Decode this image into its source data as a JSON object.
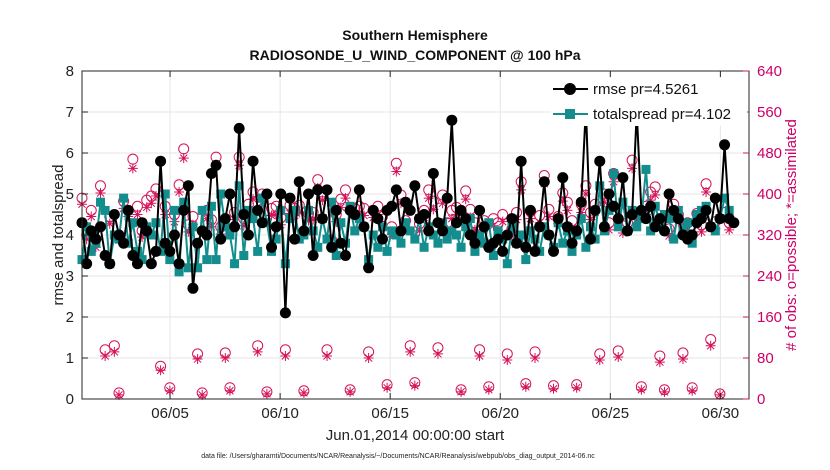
{
  "chart_data": {
    "type": "line",
    "title": "Southern Hemisphere",
    "subtitle": "RADIOSONDE_U_WIND_COMPONENT @ 100 hPa",
    "xlabel": "Jun.01,2014 00:00:00 start",
    "ylabel": "rmse and totalspread",
    "ylabel_right": "# of obs: o=possible; *=assimilated",
    "footnote": "data file: /Users/gharamti/Documents/NCAR/Reanalysis/~/Documents/NCAR/Reanalysis/webpub/obs_diag_output_2014-06.nc",
    "xlim": [
      1.0,
      31.3
    ],
    "ylim": [
      0,
      8
    ],
    "ylim_right": [
      0,
      640
    ],
    "x_ticks": [
      5,
      10,
      15,
      20,
      25,
      30
    ],
    "x_tick_labels": [
      "06/05",
      "06/10",
      "06/15",
      "06/20",
      "06/25",
      "06/30"
    ],
    "y_ticks": [
      0,
      1,
      2,
      3,
      4,
      5,
      6,
      7,
      8
    ],
    "y_tick_labels": [
      "0",
      "1",
      "2",
      "3",
      "4",
      "5",
      "6",
      "7",
      "8"
    ],
    "y_ticks_right": [
      0,
      80,
      160,
      240,
      320,
      400,
      480,
      560,
      640
    ],
    "y_tick_labels_right": [
      "0",
      "80",
      "160",
      "240",
      "320",
      "400",
      "480",
      "560",
      "640"
    ],
    "grid": true,
    "legend_position": "top-right",
    "colors": {
      "rmse": "#000000",
      "spread": "#138d8d",
      "obs": "#d4145a",
      "grid": "#e6e6e6",
      "axis": "#262626"
    },
    "series": [
      {
        "name": "rmse pr=4.5261",
        "marker": "circle",
        "values": [
          4.3,
          3.3,
          4.1,
          3.9,
          4.2,
          3.5,
          3.3,
          4.5,
          4.0,
          3.8,
          4.6,
          3.5,
          3.3,
          4.3,
          4.1,
          3.3,
          3.6,
          5.8,
          3.8,
          3.6,
          4.0,
          3.3,
          4.6,
          5.2,
          2.7,
          3.8,
          4.1,
          4.0,
          5.5,
          5.7,
          3.9,
          4.4,
          5.0,
          4.2,
          6.6,
          4.5,
          4.0,
          5.8,
          4.6,
          4.3,
          5.0,
          3.7,
          4.2,
          5.0,
          2.1,
          4.9,
          3.9,
          5.3,
          4.1,
          5.0,
          3.5,
          5.1,
          4.4,
          5.1,
          3.7,
          4.6,
          3.8,
          3.5,
          4.6,
          4.5,
          5.1,
          4.2,
          3.2,
          4.6,
          4.4,
          3.9,
          4.6,
          4.7,
          5.1,
          4.1,
          4.8,
          4.6,
          5.2,
          4.4,
          4.5,
          4.1,
          5.5,
          4.3,
          4.1,
          4.9,
          6.8,
          4.3,
          4.6,
          4.4,
          4.0,
          3.8,
          4.6,
          4.2,
          3.7,
          3.8,
          3.9,
          3.6,
          4.0,
          4.4,
          3.8,
          5.8,
          3.7,
          4.6,
          3.6,
          4.2,
          5.3,
          4.0,
          3.6,
          4.4,
          5.4,
          4.2,
          3.8,
          4.1,
          4.8,
          7.1,
          3.9,
          4.6,
          5.8,
          4.2,
          5.0,
          4.7,
          4.4,
          5.4,
          4.1,
          4.5,
          7.0,
          4.6,
          4.4,
          4.7,
          4.2,
          4.4,
          4.1,
          5.0,
          4.6,
          4.4,
          4.0,
          3.9,
          4.0,
          4.3,
          4.4,
          4.6,
          4.2,
          4.9,
          4.4,
          6.2,
          4.4,
          4.3
        ],
        "x_start": 1.0,
        "x_step": 0.21
      },
      {
        "name": "totalspread pr=4.102",
        "marker": "square",
        "values": [
          3.4,
          4.2,
          3.6,
          3.8,
          4.8,
          4.6,
          3.3,
          4.0,
          3.9,
          4.9,
          3.8,
          4.3,
          3.6,
          3.4,
          4.2,
          4.0,
          4.3,
          3.6,
          5.0,
          3.4,
          4.6,
          3.1,
          4.8,
          3.2,
          4.2,
          3.2,
          4.6,
          3.4,
          4.7,
          3.4,
          5.0,
          4.2,
          4.0,
          3.3,
          5.2,
          3.5,
          4.6,
          4.4,
          3.6,
          4.9,
          4.3,
          3.6,
          3.9,
          4.6,
          3.3,
          4.4,
          4.6,
          3.9,
          4.0,
          4.6,
          4.1,
          3.7,
          4.4,
          3.9,
          4.8,
          3.5,
          4.3,
          3.8,
          4.7,
          4.1,
          4.4,
          4.2,
          3.4,
          4.0,
          3.7,
          4.2,
          3.6,
          4.1,
          4.0,
          3.8,
          4.3,
          4.1,
          3.9,
          4.4,
          3.7,
          4.2,
          4.0,
          3.8,
          4.3,
          3.9,
          4.1,
          4.0,
          3.7,
          4.2,
          4.4,
          3.6,
          4.0,
          3.8,
          4.3,
          3.5,
          4.1,
          3.9,
          3.3,
          4.2,
          3.8,
          4.0,
          3.4,
          4.1,
          3.9,
          3.6,
          4.2,
          4.0,
          3.7,
          4.3,
          3.8,
          4.1,
          3.6,
          4.0,
          4.4,
          3.7,
          4.2,
          3.9,
          5.2,
          4.1,
          4.6,
          5.5,
          4.2,
          4.8,
          4.1,
          4.6,
          4.2,
          4.4,
          5.6,
          4.1,
          4.7,
          4.3,
          4.5,
          4.4,
          3.9,
          4.6,
          4.1,
          4.3,
          3.8,
          4.5,
          4.6,
          4.7,
          4.2,
          4.1,
          4.4,
          4.9,
          4.6
        ],
        "x_start": 1.0,
        "x_step": 0.21
      }
    ],
    "obs_series": {
      "possible": [
        392,
        320,
        368,
        312,
        416,
        96,
        356,
        104,
        12,
        386,
        368,
        468,
        376,
        328,
        388,
        396,
        410,
        64,
        376,
        22,
        360,
        418,
        488,
        340,
        356,
        88,
        12,
        368,
        350,
        472,
        336,
        90,
        22,
        364,
        472,
        352,
        380,
        404,
        104,
        400,
        14,
        372,
        376,
        354,
        96,
        378,
        372,
        378,
        16,
        362,
        364,
        428,
        404,
        96,
        310,
        360,
        390,
        408,
        18,
        372,
        376,
        372,
        92,
        368,
        376,
        356,
        28,
        336,
        460,
        398,
        348,
        104,
        32,
        342,
        368,
        408,
        386,
        100,
        398,
        344,
        368,
        374,
        18,
        406,
        370,
        344,
        96,
        348,
        24,
        352,
        344,
        360,
        88,
        332,
        364,
        424,
        30,
        366,
        92,
        358,
        436,
        370,
        26,
        356,
        402,
        384,
        348,
        28,
        380,
        416,
        364,
        380,
        88,
        400,
        344,
        440,
        94,
        338,
        344,
        466,
        364,
        24,
        376,
        404,
        414,
        84,
        18,
        332,
        380,
        360,
        90,
        344,
        22,
        362,
        340,
        420,
        116,
        346,
        10,
        364,
        344
      ],
      "assimilated": [
        380,
        312,
        356,
        296,
        402,
        84,
        342,
        92,
        8,
        372,
        356,
        450,
        360,
        316,
        374,
        382,
        396,
        56,
        360,
        16,
        346,
        404,
        470,
        326,
        340,
        78,
        8,
        352,
        336,
        456,
        322,
        80,
        16,
        350,
        456,
        338,
        364,
        390,
        92,
        384,
        10,
        358,
        360,
        340,
        84,
        362,
        358,
        364,
        12,
        348,
        350,
        412,
        388,
        84,
        298,
        346,
        374,
        392,
        14,
        358,
        360,
        358,
        80,
        354,
        360,
        340,
        22,
        322,
        444,
        382,
        334,
        92,
        26,
        328,
        354,
        392,
        370,
        88,
        382,
        330,
        352,
        360,
        14,
        390,
        354,
        330,
        84,
        334,
        18,
        338,
        330,
        346,
        76,
        318,
        350,
        408,
        24,
        352,
        80,
        344,
        420,
        356,
        20,
        342,
        386,
        368,
        334,
        22,
        364,
        400,
        350,
        364,
        76,
        384,
        330,
        424,
        82,
        324,
        330,
        450,
        350,
        18,
        360,
        388,
        398,
        72,
        14,
        318,
        364,
        346,
        78,
        330,
        16,
        348,
        326,
        404,
        104,
        332,
        8,
        350,
        330
      ],
      "x_start": 1.0,
      "x_step": 0.21
    }
  }
}
